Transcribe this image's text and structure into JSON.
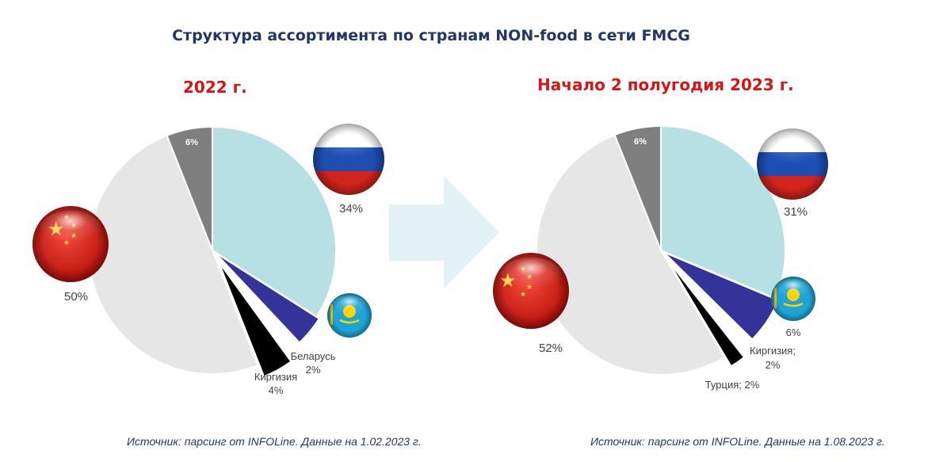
{
  "title": "Структура ассортимента по странам NON-food в сети FMCG",
  "colors": {
    "title": "#1f3864",
    "subtitle": "#d91414",
    "russia": "#b6e0e4",
    "kazakhstan": "#33339a",
    "belarus": "#ffffff",
    "kyrgyzstan": "#000000",
    "turkey": "#000000",
    "china": "#e6e6e6",
    "other": "#7f7f7f",
    "arrow": "#e2f2f4"
  },
  "chart_data": [
    {
      "type": "pie",
      "title": "2022 г.",
      "source": "Источник: парсинг от INFOLine. Данные на 1.02.2023 г.",
      "series": [
        {
          "label": "34%",
          "value": 34,
          "color": "#b6e0e4",
          "flag": "russia-flag-icon"
        },
        {
          "label": "",
          "value": 4,
          "color": "#33339a",
          "flag": "kazakhstan-flag-icon"
        },
        {
          "label": "Беларусь 2%",
          "value": 2,
          "color": "#ffffff"
        },
        {
          "label": "Киргизия 4%",
          "value": 4,
          "color": "#000000"
        },
        {
          "label": "50%",
          "value": 50,
          "color": "#e6e6e6",
          "flag": "china-flag-icon"
        },
        {
          "label": "6%",
          "value": 6,
          "color": "#7f7f7f"
        }
      ]
    },
    {
      "type": "pie",
      "title": "Начало 2 полугодия 2023 г.",
      "source": "Источник: парсинг от INFOLine. Данные на 1.08.2023 г.",
      "series": [
        {
          "label": "31%",
          "value": 31,
          "color": "#b6e0e4",
          "flag": "russia-flag-icon"
        },
        {
          "label": "6%",
          "value": 6,
          "color": "#33339a",
          "flag": "kazakhstan-flag-icon"
        },
        {
          "label": "Киргизия; 2%",
          "value": 2,
          "color": "#ffffff"
        },
        {
          "label": "Турция; 2%",
          "value": 2,
          "color": "#000000"
        },
        {
          "label": "52%",
          "value": 52,
          "color": "#e6e6e6",
          "flag": "china-flag-icon"
        },
        {
          "label": "6%",
          "value": 6,
          "color": "#7f7f7f"
        }
      ]
    }
  ]
}
